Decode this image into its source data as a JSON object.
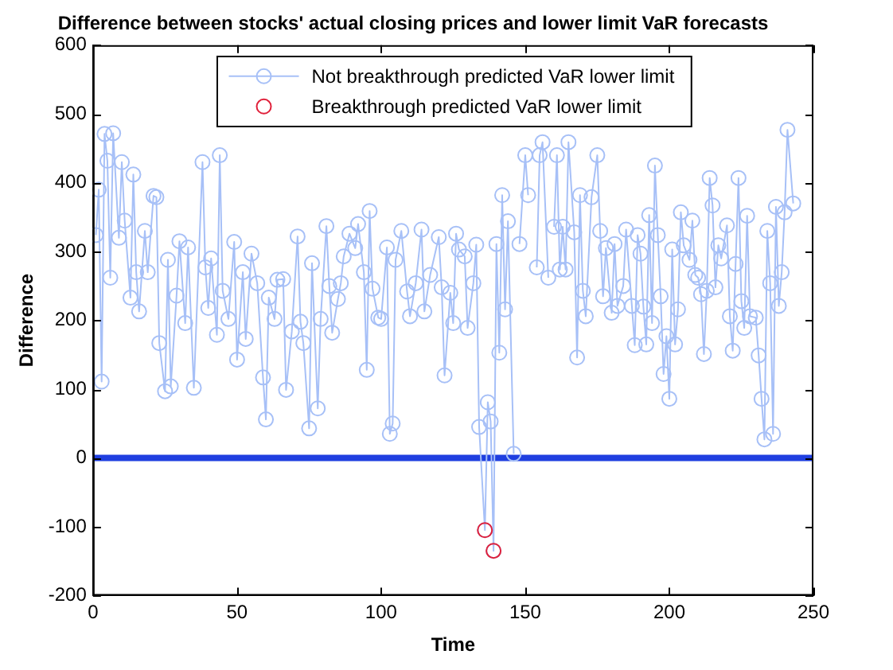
{
  "chart_data": {
    "type": "line",
    "title": "Difference between stocks' actual closing prices and lower limit VaR forecasts",
    "xlabel": "Time",
    "ylabel": "Difference",
    "xlim": [
      0,
      250
    ],
    "xticks": [
      0,
      50,
      100,
      150,
      200,
      250
    ],
    "ylim": [
      -200,
      600
    ],
    "yticks": [
      -200,
      -100,
      0,
      100,
      200,
      300,
      400,
      500,
      600
    ],
    "grid": false,
    "legend": "top",
    "marker": "circle",
    "line_style": "solid",
    "ref_lines": [
      {
        "axis": "y",
        "value": 0,
        "color": "#1f3fe0"
      }
    ],
    "series": [
      {
        "name": "Not breakthrough predicted VaR lower limit",
        "color": "#a7c0f7",
        "x": [
          1,
          2,
          3,
          4,
          5,
          6,
          7,
          9,
          10,
          11,
          13,
          14,
          15,
          16,
          18,
          19,
          21,
          22,
          23,
          25,
          26,
          27,
          29,
          30,
          32,
          33,
          35,
          38,
          39,
          40,
          41,
          43,
          44,
          45,
          47,
          49,
          50,
          52,
          53,
          55,
          57,
          59,
          60,
          61,
          63,
          64,
          66,
          67,
          69,
          71,
          72,
          73,
          75,
          76,
          78,
          79,
          81,
          82,
          83,
          85,
          86,
          87,
          89,
          91,
          92,
          94,
          95,
          96,
          97,
          99,
          100,
          102,
          103,
          104,
          105,
          107,
          109,
          110,
          112,
          114,
          115,
          117,
          120,
          121,
          122,
          124,
          125,
          126,
          127,
          129,
          130,
          132,
          133,
          134,
          136,
          137,
          138,
          139,
          140,
          141,
          142,
          143,
          144,
          146,
          147,
          148,
          150,
          151,
          152,
          154,
          155,
          156,
          158,
          159,
          160,
          161,
          162,
          163,
          164,
          165,
          167,
          168,
          169,
          170,
          171,
          173,
          175,
          176,
          177,
          178,
          180,
          181,
          182,
          184,
          185,
          187,
          188,
          189,
          190,
          191,
          192,
          193,
          194,
          195,
          196,
          197,
          198,
          199,
          200,
          201,
          202,
          203,
          204,
          205,
          207,
          208,
          209,
          210,
          211,
          212,
          213,
          214,
          215,
          216,
          217,
          218,
          220,
          221,
          222,
          223,
          224,
          225,
          226,
          227,
          228,
          230,
          231,
          232,
          233,
          234,
          235,
          236,
          237,
          238,
          239,
          240,
          241,
          243
        ],
        "values": [
          324,
          390,
          111,
          471,
          432,
          262,
          472,
          320,
          430,
          345,
          233,
          412,
          270,
          213,
          330,
          270,
          381,
          379,
          167,
          97,
          288,
          104,
          236,
          315,
          196,
          306,
          102,
          430,
          277,
          218,
          290,
          179,
          440,
          243,
          202,
          314,
          143,
          270,
          173,
          297,
          254,
          117,
          56,
          233,
          202,
          259,
          260,
          99,
          184,
          322,
          198,
          167,
          43,
          283,
          72,
          202,
          337,
          250,
          182,
          231,
          254,
          293,
          326,
          305,
          340,
          270,
          128,
          359,
          246,
          204,
          202,
          306,
          35,
          50,
          288,
          330,
          242,
          206,
          254,
          332,
          213,
          266,
          321,
          248,
          120,
          240,
          196,
          326,
          303,
          293,
          189,
          254,
          310,
          45,
          -105,
          81,
          53,
          -135,
          311,
          153,
          382,
          216,
          344,
          6,
          null,
          311,
          440,
          382,
          null,
          277,
          440,
          459,
          262,
          null,
          336,
          440,
          274,
          336,
          274,
          459,
          328,
          146,
          382,
          243,
          206,
          379,
          440,
          330,
          235,
          305,
          211,
          311,
          221,
          250,
          332,
          221,
          164,
          324,
          297,
          220,
          165,
          353,
          196,
          425,
          324,
          235,
          122,
          177,
          86,
          303,
          165,
          216,
          357,
          309,
          288,
          345,
          266,
          262,
          238,
          151,
          243,
          407,
          367,
          248,
          309,
          290,
          338,
          206,
          156,
          282,
          407,
          228,
          189,
          352,
          206,
          204,
          149,
          86,
          27,
          330,
          254,
          35,
          365,
          221,
          270,
          357,
          477,
          370
        ]
      },
      {
        "name": "Breakthrough predicted VaR lower limit",
        "type": "scatter",
        "color": "#e0203a",
        "x": [
          136,
          139
        ],
        "values": [
          -105,
          -135
        ]
      }
    ]
  }
}
